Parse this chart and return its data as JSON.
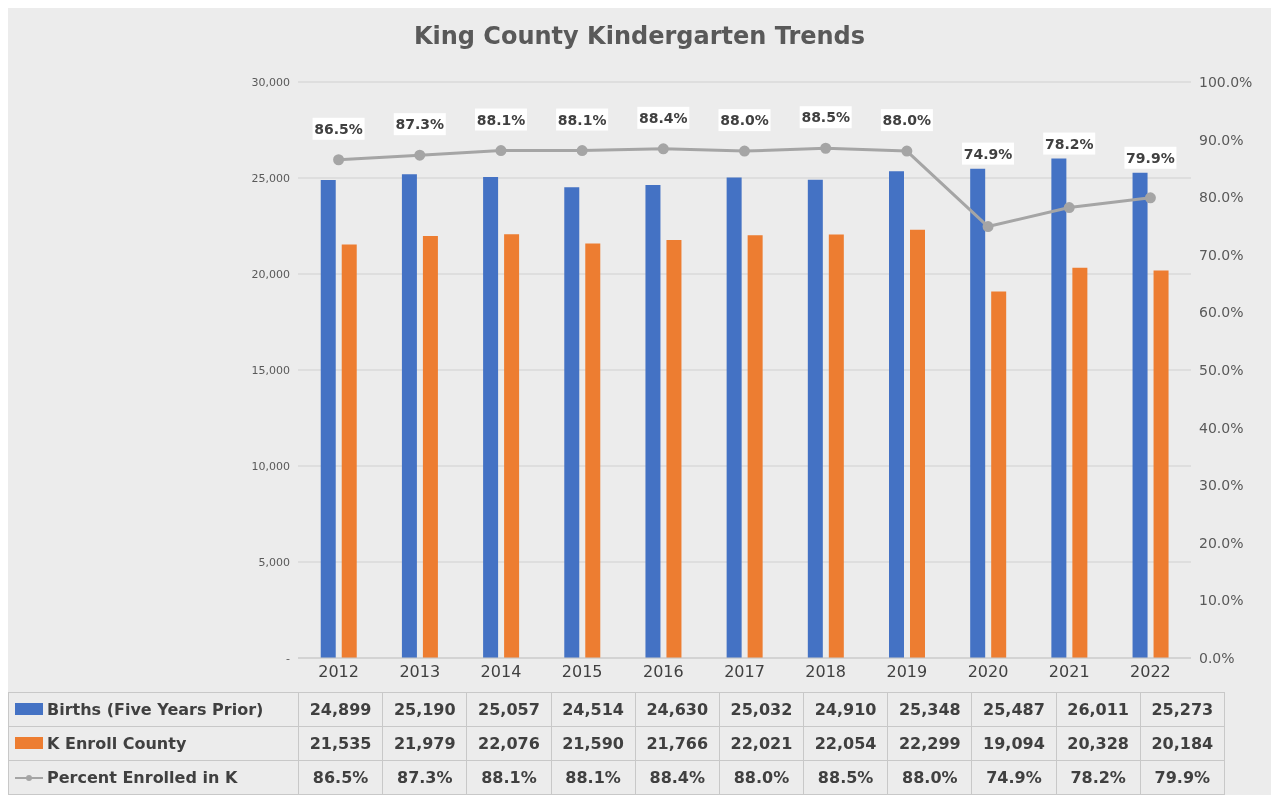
{
  "chart_data": {
    "type": "bar",
    "title": "King County Kindergarten Trends",
    "categories": [
      "2012",
      "2013",
      "2014",
      "2015",
      "2016",
      "2017",
      "2018",
      "2019",
      "2020",
      "2021",
      "2022"
    ],
    "series": [
      {
        "name": "Births (Five Years Prior)",
        "color": "#4472c4",
        "values": [
          24899,
          25190,
          25057,
          24514,
          24630,
          25032,
          24910,
          25348,
          25487,
          26011,
          25273
        ],
        "value_labels": [
          "24,899",
          "25,190",
          "25,057",
          "24,514",
          "24,630",
          "25,032",
          "24,910",
          "25,348",
          "25,487",
          "26,011",
          "25,273"
        ]
      },
      {
        "name": "K Enroll County",
        "color": "#ed7d31",
        "values": [
          21535,
          21979,
          22076,
          21590,
          21766,
          22021,
          22054,
          22299,
          19094,
          20328,
          20184
        ],
        "value_labels": [
          "21,535",
          "21,979",
          "22,076",
          "21,590",
          "21,766",
          "22,021",
          "22,054",
          "22,299",
          "19,094",
          "20,328",
          "20,184"
        ]
      },
      {
        "name": "Percent Enrolled in K",
        "type": "line",
        "axis": "y2",
        "color": "#a5a5a5",
        "marker": "circle",
        "values": [
          86.5,
          87.3,
          88.1,
          88.1,
          88.4,
          88.0,
          88.5,
          88.0,
          74.9,
          78.2,
          79.9
        ],
        "value_labels": [
          "86.5%",
          "87.3%",
          "88.1%",
          "88.1%",
          "88.4%",
          "88.0%",
          "88.5%",
          "88.0%",
          "74.9%",
          "78.2%",
          "79.9%"
        ]
      }
    ],
    "ylim": [
      0,
      30000
    ],
    "yticks": [
      {
        "value": 0,
        "label": "-"
      },
      {
        "value": 5000,
        "label": "5,000"
      },
      {
        "value": 10000,
        "label": "10,000"
      },
      {
        "value": 15000,
        "label": "15,000"
      },
      {
        "value": 20000,
        "label": "20,000"
      },
      {
        "value": 25000,
        "label": "25,000"
      },
      {
        "value": 30000,
        "label": "30,000"
      }
    ],
    "y2lim": [
      0,
      100
    ],
    "y2ticks": [
      {
        "value": 0,
        "label": "0.0%"
      },
      {
        "value": 10,
        "label": "10.0%"
      },
      {
        "value": 20,
        "label": "20.0%"
      },
      {
        "value": 30,
        "label": "30.0%"
      },
      {
        "value": 40,
        "label": "40.0%"
      },
      {
        "value": 50,
        "label": "50.0%"
      },
      {
        "value": 60,
        "label": "60.0%"
      },
      {
        "value": 70,
        "label": "70.0%"
      },
      {
        "value": 80,
        "label": "80.0%"
      },
      {
        "value": 90,
        "label": "90.0%"
      },
      {
        "value": 100,
        "label": "100.0%"
      }
    ],
    "grid": "y",
    "legend": "bottom"
  }
}
